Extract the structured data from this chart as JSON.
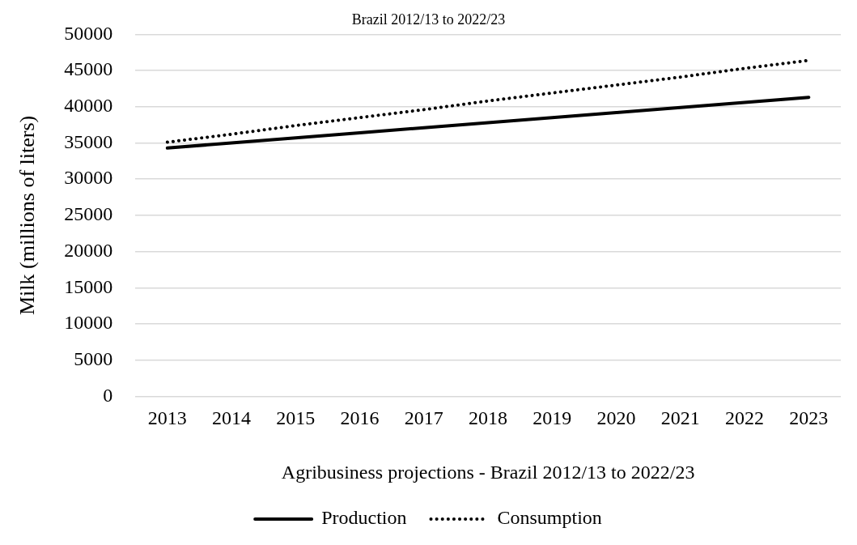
{
  "chart_data": {
    "type": "line",
    "title": "Brazil 2012/13 to 2022/23",
    "xlabel": "Agribusiness projections - Brazil 2012/13 to 2022/23",
    "ylabel": "Milk (millions of liters)",
    "categories": [
      "2013",
      "2014",
      "2015",
      "2016",
      "2017",
      "2018",
      "2019",
      "2020",
      "2021",
      "2022",
      "2023"
    ],
    "series": [
      {
        "name": "Production",
        "color": "#000000",
        "line_style": "solid",
        "values": [
          34300,
          35000,
          35700,
          36400,
          37100,
          37800,
          38500,
          39200,
          39900,
          40600,
          41300
        ]
      },
      {
        "name": "Consumption",
        "color": "#000000",
        "line_style": "dotted",
        "values": [
          35100,
          36200,
          37400,
          38500,
          39600,
          40800,
          41900,
          43000,
          44100,
          45300,
          46400
        ]
      }
    ],
    "ylim": [
      0,
      50000
    ],
    "yticks": [
      0,
      5000,
      10000,
      15000,
      20000,
      25000,
      30000,
      35000,
      40000,
      45000,
      50000
    ],
    "grid": "y",
    "legend": "bottom",
    "marker": "none"
  }
}
